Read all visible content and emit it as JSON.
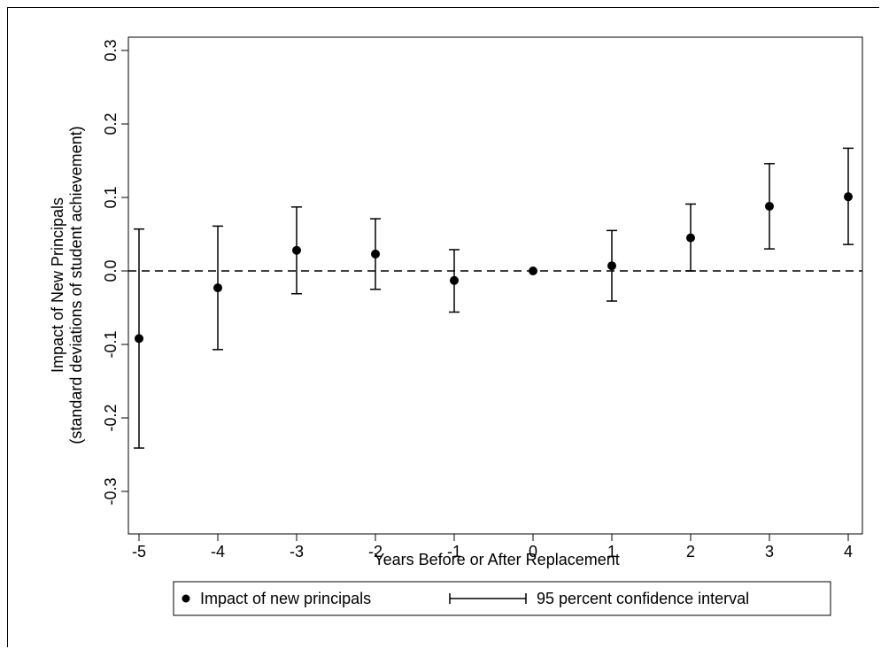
{
  "chart_data": {
    "type": "scatter",
    "xlabel": "Years Before or After Replacement",
    "ylabel_lines": [
      "Impact of New Principals",
      "(standard deviations of student achievement)"
    ],
    "xlim": [
      -5,
      4
    ],
    "ylim": [
      -0.3,
      0.3
    ],
    "xticks": [
      -5,
      -4,
      -3,
      -2,
      -1,
      0,
      1,
      2,
      3,
      4
    ],
    "yticks": [
      -0.3,
      -0.2,
      -0.1,
      0.0,
      0.1,
      0.2,
      0.3
    ],
    "ytick_labels": [
      "-0.3",
      "-0.2",
      "-0.1",
      "0.0",
      "0.1",
      "0.2",
      "0.3"
    ],
    "reference_line": {
      "y": 0,
      "style": "dashed"
    },
    "grid": false,
    "legend_position": "bottom",
    "series": [
      {
        "name": "Impact of new principals",
        "x": [
          -5,
          -4,
          -3,
          -2,
          -1,
          0,
          1,
          2,
          3,
          4
        ],
        "y": [
          -0.092,
          -0.023,
          0.028,
          0.023,
          -0.013,
          0.0,
          0.007,
          0.045,
          0.088,
          0.101
        ],
        "ci_lower": [
          -0.241,
          -0.107,
          -0.031,
          -0.025,
          -0.056,
          null,
          -0.041,
          0.0,
          0.03,
          0.036
        ],
        "ci_upper": [
          0.057,
          0.061,
          0.087,
          0.071,
          0.029,
          null,
          0.055,
          0.091,
          0.146,
          0.167
        ]
      }
    ],
    "legend": {
      "items": [
        "Impact of new principals",
        "95 percent confidence interval"
      ]
    }
  }
}
